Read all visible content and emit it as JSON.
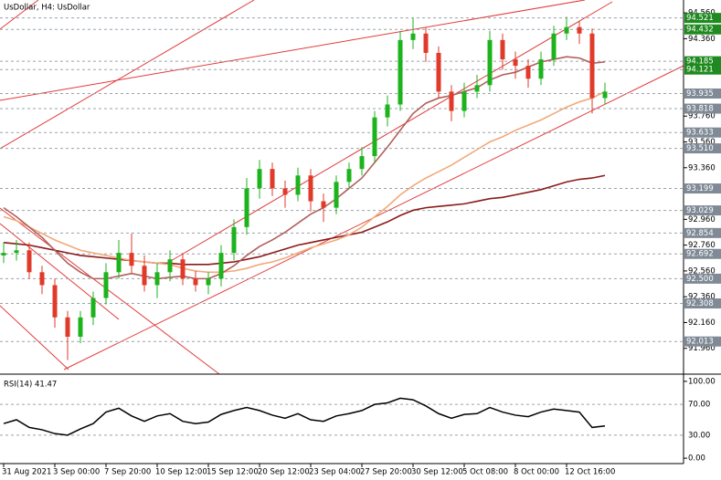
{
  "chart_data": [
    {
      "type": "candlestick",
      "title": "UsDollar, H4:  UsDollar",
      "categories": [
        "31 Aug 2021",
        null,
        null,
        null,
        "3 Sep 00:00",
        null,
        null,
        null,
        "7 Sep 20:00",
        null,
        null,
        null,
        "10 Sep 12:00",
        null,
        null,
        null,
        "15 Sep 12:00",
        null,
        null,
        null,
        "20 Sep 12:00",
        null,
        null,
        null,
        "23 Sep 04:00",
        null,
        null,
        null,
        "27 Sep 20:00",
        null,
        null,
        null,
        "30 Sep 12:00",
        null,
        null,
        null,
        "5 Oct 08:00",
        null,
        null,
        null,
        "8 Oct 00:00",
        null,
        null,
        null,
        "12 Oct 16:00",
        null,
        null,
        null
      ],
      "open": [
        92.68,
        92.7,
        92.72,
        92.55,
        92.45,
        92.2,
        92.05,
        92.2,
        92.35,
        92.55,
        92.7,
        92.6,
        92.45,
        92.55,
        92.65,
        92.5,
        92.45,
        92.5,
        92.7,
        92.9,
        93.2,
        93.35,
        93.2,
        93.15,
        93.3,
        93.1,
        93.05,
        93.25,
        93.35,
        93.45,
        93.75,
        93.85,
        94.35,
        94.4,
        94.25,
        93.95,
        93.8,
        93.95,
        94.0,
        94.35,
        94.2,
        94.15,
        94.05,
        94.2,
        94.4,
        94.45,
        94.4,
        93.9
      ],
      "high": [
        92.78,
        92.8,
        92.78,
        92.6,
        92.5,
        92.25,
        92.25,
        92.4,
        92.62,
        92.8,
        92.85,
        92.68,
        92.62,
        92.72,
        92.7,
        92.56,
        92.55,
        92.76,
        92.96,
        93.28,
        93.42,
        93.4,
        93.26,
        93.36,
        93.35,
        93.16,
        93.3,
        93.4,
        93.52,
        93.8,
        93.92,
        94.42,
        94.52,
        94.45,
        94.3,
        94.0,
        94.02,
        94.08,
        94.42,
        94.4,
        94.26,
        94.2,
        94.26,
        94.46,
        94.53,
        94.5,
        94.44,
        94.02
      ],
      "low": [
        92.62,
        92.64,
        92.5,
        92.38,
        92.12,
        91.87,
        92.0,
        92.14,
        92.3,
        92.5,
        92.54,
        92.4,
        92.35,
        92.48,
        92.45,
        92.4,
        92.38,
        92.44,
        92.64,
        92.84,
        93.12,
        93.14,
        93.05,
        93.1,
        93.02,
        92.94,
        93.0,
        93.2,
        93.3,
        93.4,
        93.68,
        93.8,
        94.28,
        94.18,
        93.9,
        93.72,
        93.75,
        93.9,
        93.95,
        94.12,
        94.05,
        93.98,
        94.0,
        94.15,
        94.35,
        94.32,
        93.78,
        93.85
      ],
      "close": [
        92.7,
        92.72,
        92.55,
        92.45,
        92.2,
        92.05,
        92.2,
        92.35,
        92.55,
        92.7,
        92.6,
        92.45,
        92.55,
        92.65,
        92.5,
        92.45,
        92.5,
        92.7,
        92.9,
        93.2,
        93.35,
        93.2,
        93.15,
        93.3,
        93.1,
        93.05,
        93.25,
        93.35,
        93.45,
        93.75,
        93.85,
        94.35,
        94.4,
        94.25,
        93.95,
        93.8,
        93.95,
        94.0,
        94.35,
        94.2,
        94.15,
        94.05,
        94.2,
        94.4,
        94.45,
        94.4,
        93.9,
        93.95
      ],
      "up_color": "#1db31d",
      "down_color": "#e03a2a",
      "series": [
        {
          "color": "#8b1a1a",
          "values": [
            92.78,
            92.77,
            92.76,
            92.74,
            92.72,
            92.7,
            92.68,
            92.67,
            92.66,
            92.65,
            92.64,
            92.63,
            92.62,
            92.62,
            92.61,
            92.61,
            92.61,
            92.62,
            92.63,
            92.65,
            92.67,
            92.7,
            92.73,
            92.76,
            92.78,
            92.8,
            92.82,
            92.84,
            92.86,
            92.9,
            92.94,
            92.99,
            93.03,
            93.05,
            93.06,
            93.07,
            93.08,
            93.1,
            93.12,
            93.13,
            93.15,
            93.17,
            93.19,
            93.22,
            93.25,
            93.27,
            93.28,
            93.3
          ]
        },
        {
          "color": "#f2aa7a",
          "values": [
            92.98,
            92.95,
            92.9,
            92.85,
            92.8,
            92.76,
            92.72,
            92.7,
            92.68,
            92.66,
            92.64,
            92.63,
            92.62,
            92.61,
            92.58,
            92.56,
            92.55,
            92.55,
            92.56,
            92.58,
            92.61,
            92.63,
            92.66,
            92.7,
            92.74,
            92.77,
            92.8,
            92.84,
            92.9,
            92.98,
            93.06,
            93.15,
            93.22,
            93.28,
            93.33,
            93.38,
            93.44,
            93.5,
            93.56,
            93.6,
            93.65,
            93.69,
            93.73,
            93.78,
            93.83,
            93.87,
            93.9,
            93.95
          ]
        },
        {
          "color": "#b0605a",
          "values": [
            93.05,
            92.98,
            92.9,
            92.82,
            92.72,
            92.62,
            92.55,
            92.5,
            92.5,
            92.52,
            92.54,
            92.52,
            92.5,
            92.51,
            92.52,
            92.5,
            92.5,
            92.54,
            92.6,
            92.68,
            92.75,
            92.8,
            92.86,
            92.93,
            93.0,
            93.05,
            93.12,
            93.2,
            93.28,
            93.4,
            93.52,
            93.65,
            93.78,
            93.86,
            93.9,
            93.92,
            93.95,
            93.98,
            94.04,
            94.08,
            94.1,
            94.14,
            94.18,
            94.2,
            94.22,
            94.21,
            94.17,
            94.18
          ]
        }
      ],
      "ylim": [
        91.76,
        94.66
      ],
      "yticks": [
        {
          "value": 94.56,
          "label": "94.560"
        },
        {
          "value": 94.36,
          "label": "94.360"
        },
        {
          "value": 93.76,
          "label": "93.760"
        },
        {
          "value": 93.56,
          "label": "93.560"
        },
        {
          "value": 93.36,
          "label": "93.360"
        },
        {
          "value": 92.96,
          "label": "92.960"
        },
        {
          "value": 92.76,
          "label": "92.760"
        },
        {
          "value": 92.56,
          "label": "92.560"
        },
        {
          "value": 92.36,
          "label": "92.360"
        },
        {
          "value": 92.16,
          "label": "92.160"
        },
        {
          "value": 91.96,
          "label": "91.960"
        }
      ],
      "levels": [
        {
          "value": 94.521,
          "label": "94.521",
          "color": "#1f8a1f"
        },
        {
          "value": 94.432,
          "label": "94.432",
          "color": "#1f8a1f"
        },
        {
          "value": 94.185,
          "label": "94.185",
          "color": "#1f8a1f"
        },
        {
          "value": 94.121,
          "label": "94.121",
          "color": "#1f8a1f"
        },
        {
          "value": 93.935,
          "label": "93.935",
          "color": "#7f8a96"
        },
        {
          "value": 93.818,
          "label": "93.818",
          "color": "#7f8a96"
        },
        {
          "value": 93.633,
          "label": "93.633",
          "color": "#7f8a96"
        },
        {
          "value": 93.51,
          "label": "93.510",
          "color": "#7f8a96"
        },
        {
          "value": 93.199,
          "label": "93.199",
          "color": "#7f8a96"
        },
        {
          "value": 93.029,
          "label": "93.029",
          "color": "#7f8a96"
        },
        {
          "value": 92.854,
          "label": "92.854",
          "color": "#7f8a96"
        },
        {
          "value": 92.692,
          "label": "92.692",
          "color": "#7f8a96"
        },
        {
          "value": 92.5,
          "label": "92.500",
          "color": "#7f8a96"
        },
        {
          "value": 92.308,
          "label": "92.308",
          "color": "#7f8a96"
        },
        {
          "value": 92.013,
          "label": "92.013",
          "color": "#7f8a96"
        }
      ]
    },
    {
      "type": "line",
      "title": "RSI(14) 41.47",
      "color": "#000000",
      "values": [
        45,
        50,
        40,
        37,
        32,
        30,
        38,
        45,
        60,
        65,
        55,
        48,
        55,
        58,
        48,
        45,
        47,
        57,
        62,
        66,
        62,
        56,
        52,
        58,
        50,
        48,
        55,
        58,
        62,
        70,
        72,
        78,
        76,
        68,
        58,
        52,
        57,
        58,
        66,
        60,
        56,
        54,
        60,
        64,
        62,
        60,
        40,
        42
      ],
      "ylim": [
        -7,
        107
      ],
      "yticks": [
        {
          "value": 100,
          "label": "100.00"
        },
        {
          "value": 70,
          "label": "70.00"
        },
        {
          "value": 30,
          "label": "30.00"
        },
        {
          "value": 0,
          "label": "0.00"
        }
      ]
    }
  ]
}
